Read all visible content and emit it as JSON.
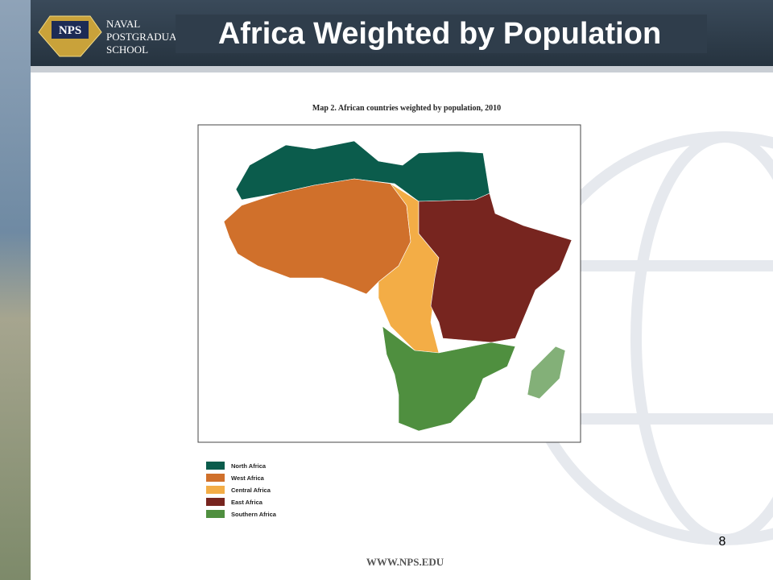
{
  "header": {
    "logo": {
      "emblem": "NPS",
      "lines": [
        "NAVAL",
        "POSTGRADUATE",
        "SCHOOL"
      ]
    },
    "title": "Africa Weighted by Population"
  },
  "map": {
    "caption": "Map 2. African countries weighted by population, 2010",
    "legend": [
      {
        "label": "North Africa",
        "color": "#0b5c4c"
      },
      {
        "label": "West Africa",
        "color": "#d0702b"
      },
      {
        "label": "Central Africa",
        "color": "#f3ad46"
      },
      {
        "label": "East Africa",
        "color": "#77251f"
      },
      {
        "label": "Southern Africa",
        "color": "#4f8f3f"
      }
    ]
  },
  "page_number": "8",
  "footer": "WWW.NPS.EDU"
}
